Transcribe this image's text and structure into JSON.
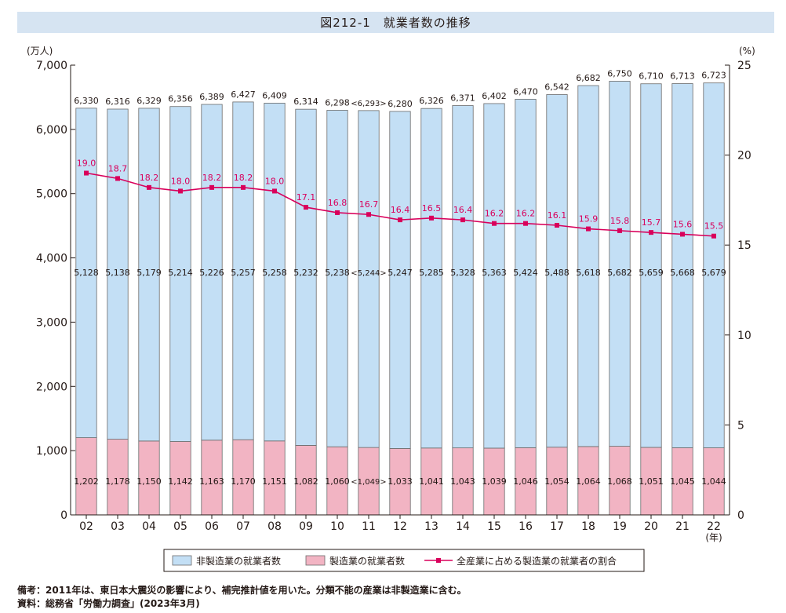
{
  "header": {
    "title": "図212-1　就業者数の推移"
  },
  "chart_data": {
    "type": "bar",
    "stacked": true,
    "categories": [
      "02",
      "03",
      "04",
      "05",
      "06",
      "07",
      "08",
      "09",
      "10",
      "11",
      "12",
      "13",
      "14",
      "15",
      "16",
      "17",
      "18",
      "19",
      "20",
      "21",
      "22"
    ],
    "x_unit_label": "(年)",
    "totals": [
      "6,330",
      "6,316",
      "6,329",
      "6,356",
      "6,389",
      "6,427",
      "6,409",
      "6,314",
      "6,298",
      "<6,293>",
      "6,280",
      "6,326",
      "6,371",
      "6,402",
      "6,470",
      "6,542",
      "6,682",
      "6,750",
      "6,710",
      "6,713",
      "6,723"
    ],
    "series": [
      {
        "name": "非製造業の就業者数",
        "color": "#c3dff5",
        "values": [
          5128,
          5138,
          5179,
          5214,
          5226,
          5257,
          5258,
          5232,
          5238,
          5244,
          5247,
          5285,
          5328,
          5363,
          5424,
          5488,
          5618,
          5682,
          5659,
          5668,
          5679
        ],
        "labels": [
          "5,128",
          "5,138",
          "5,179",
          "5,214",
          "5,226",
          "5,257",
          "5,258",
          "5,232",
          "5,238",
          "<5,244>",
          "5,247",
          "5,285",
          "5,328",
          "5,363",
          "5,424",
          "5,488",
          "5,618",
          "5,682",
          "5,659",
          "5,668",
          "5,679"
        ]
      },
      {
        "name": "製造業の就業者数",
        "color": "#f2b4c3",
        "values": [
          1202,
          1178,
          1150,
          1142,
          1163,
          1170,
          1151,
          1082,
          1060,
          1049,
          1033,
          1041,
          1043,
          1039,
          1046,
          1054,
          1064,
          1068,
          1051,
          1045,
          1044
        ],
        "labels": [
          "1,202",
          "1,178",
          "1,150",
          "1,142",
          "1,163",
          "1,170",
          "1,151",
          "1,082",
          "1,060",
          "<1,049>",
          "1,033",
          "1,041",
          "1,043",
          "1,039",
          "1,046",
          "1,054",
          "1,064",
          "1,068",
          "1,051",
          "1,045",
          "1,044"
        ]
      },
      {
        "name": "全産業に占める製造業の就業者の割合",
        "color": "#d9005b",
        "axis": "right",
        "values": [
          19.0,
          18.7,
          18.2,
          18.0,
          18.2,
          18.2,
          18.0,
          17.1,
          16.8,
          16.7,
          16.4,
          16.5,
          16.4,
          16.2,
          16.2,
          16.1,
          15.9,
          15.8,
          15.7,
          15.6,
          15.5
        ],
        "labels": [
          "19.0",
          "18.7",
          "18.2",
          "18.0",
          "18.2",
          "18.2",
          "18.0",
          "17.1",
          "16.8",
          "16.7",
          "16.4",
          "16.5",
          "16.4",
          "16.2",
          "16.2",
          "16.1",
          "15.9",
          "15.8",
          "15.7",
          "15.6",
          "15.5"
        ]
      }
    ],
    "left_axis": {
      "unit_label": "(万人)",
      "range": [
        0,
        7000
      ],
      "ticks": [
        0,
        1000,
        2000,
        3000,
        4000,
        5000,
        6000,
        7000
      ],
      "tick_labels": [
        "0",
        "1,000",
        "2,000",
        "3,000",
        "4,000",
        "5,000",
        "6,000",
        "7,000"
      ]
    },
    "right_axis": {
      "unit_label": "(%)",
      "range": [
        0,
        25
      ],
      "ticks": [
        0,
        5,
        10,
        15,
        20,
        25
      ],
      "tick_labels": [
        "0",
        "5",
        "10",
        "15",
        "20",
        "25"
      ]
    },
    "legend_position": "bottom-center",
    "grid": false
  },
  "notes": {
    "line1": "備考：2011年は、東日本大震災の影響により、補完推計値を用いた。分類不能の産業は非製造業に含む。",
    "line2": "資料：総務省「労働力調査」(2023年3月)"
  }
}
